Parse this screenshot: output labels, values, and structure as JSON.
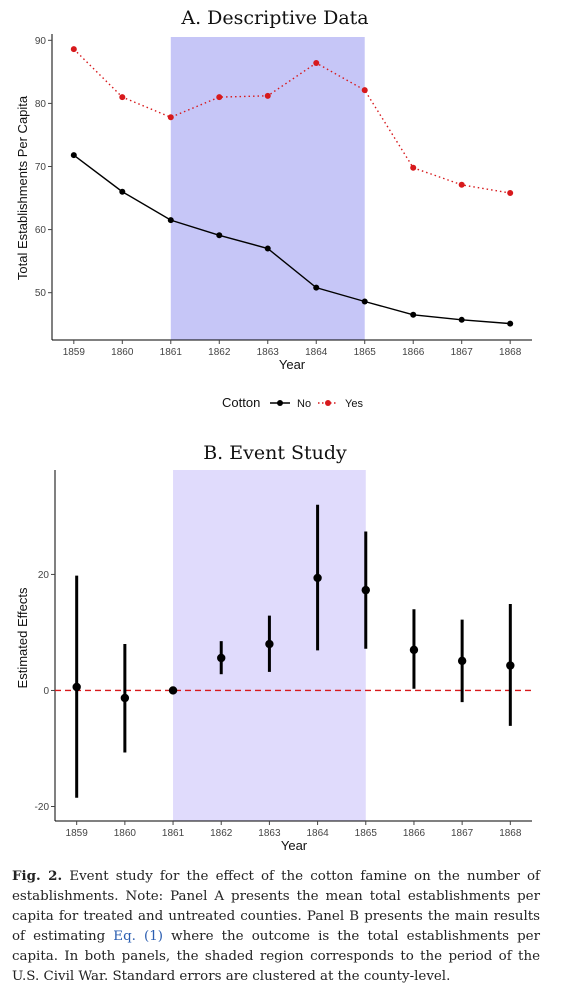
{
  "chart_data": [
    {
      "type": "line",
      "title": "A. Descriptive Data",
      "xlabel": "Year",
      "ylabel": "Total Establishments Per Capita",
      "x": [
        1859,
        1860,
        1861,
        1862,
        1863,
        1864,
        1865,
        1866,
        1867,
        1868
      ],
      "xticks": [
        "1859",
        "1860",
        "1861",
        "1862",
        "1863",
        "1864",
        "1865",
        "1866",
        "1867",
        "1868"
      ],
      "yticks": [
        "50",
        "60",
        "70",
        "80",
        "90"
      ],
      "ylim": [
        42.5,
        91
      ],
      "xlim": [
        1858.55,
        1868.45
      ],
      "shaded_region": [
        1861,
        1865
      ],
      "shaded_color": "#c6c6f7",
      "legend_title": "Cotton",
      "legend_position": "bottom",
      "series": [
        {
          "name": "No",
          "color": "#000000",
          "style": "solid",
          "values": [
            71.8,
            66.0,
            61.5,
            59.1,
            57.0,
            50.8,
            48.6,
            46.5,
            45.7,
            45.1
          ]
        },
        {
          "name": "Yes",
          "color": "#d7191c",
          "style": "dotted",
          "values": [
            88.6,
            81.0,
            77.8,
            81.0,
            81.2,
            86.4,
            82.1,
            69.8,
            67.1,
            65.8
          ]
        }
      ]
    },
    {
      "type": "scatter",
      "title": "B. Event Study",
      "xlabel": "Year",
      "ylabel": "Estimated Effects",
      "x": [
        1859,
        1860,
        1861,
        1862,
        1863,
        1864,
        1865,
        1866,
        1867,
        1868
      ],
      "xticks": [
        "1859",
        "1860",
        "1861",
        "1862",
        "1863",
        "1864",
        "1865",
        "1866",
        "1867",
        "1868"
      ],
      "yticks": [
        "-20",
        "0",
        "20"
      ],
      "ylim": [
        -22.5,
        38
      ],
      "xlim": [
        1858.55,
        1868.45
      ],
      "shaded_region": [
        1861,
        1865
      ],
      "shaded_color": "#e0dbfc",
      "reference_line": {
        "y": 0,
        "color": "#d7191c",
        "style": "dashed"
      },
      "estimates": [
        0.6,
        -1.3,
        0.0,
        5.6,
        8.0,
        19.4,
        17.3,
        7.0,
        5.1,
        4.3
      ],
      "ci_low": [
        -18.5,
        -10.7,
        0.0,
        2.8,
        3.2,
        6.9,
        7.2,
        0.3,
        -2.0,
        -6.1
      ],
      "ci_high": [
        19.8,
        8.0,
        0.0,
        8.5,
        12.9,
        32.0,
        27.4,
        14.0,
        12.2,
        14.9
      ]
    }
  ],
  "caption": {
    "label": "Fig. 2.",
    "text_part1": " Event study for the effect of the cotton famine on the number of establishments. Note: Panel A presents the mean total establishments per capita for treated and untreated counties. Panel B presents the main results of estimating ",
    "link_text": "Eq. (1)",
    "text_part2": " where the outcome is the total establishments per capita. In both panels, the shaded region corresponds to the period of the U.S. Civil War. Standard errors are clustered at the county-level."
  }
}
